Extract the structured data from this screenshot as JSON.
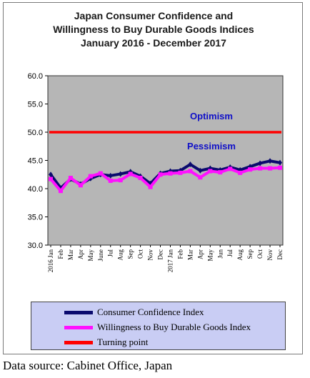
{
  "chart_data": {
    "type": "line",
    "title": [
      "Japan Consumer Confidence and",
      "Willingness to Buy Durable Goods Indices",
      "January 2016 - December   2017"
    ],
    "xlabel": "",
    "ylabel": "",
    "ylim": [
      30.0,
      60.0
    ],
    "yticks": [
      "60.0",
      "55.0",
      "50.0",
      "45.0",
      "40.0",
      "35.0",
      "30.0"
    ],
    "grid": false,
    "legend_position": "bottom",
    "categories": [
      "2016 Jan",
      "Feb",
      "Mar",
      "Apr",
      "May",
      "June",
      "Jul",
      "Aug",
      "Sep",
      "Oct",
      "Nov",
      "Dec",
      "2017 Jan",
      "Feb",
      "Mar",
      "Apr",
      "May",
      "Jun",
      "Jul",
      "Aug",
      "Sep",
      "Oct",
      "Nov",
      "Dec"
    ],
    "series": [
      {
        "name": "Consumer Confidence Index",
        "color": "#0a0a6e",
        "values": [
          42.5,
          40.1,
          41.7,
          40.8,
          41.8,
          42.5,
          42.3,
          42.6,
          43.0,
          42.2,
          40.9,
          42.7,
          43.1,
          43.2,
          44.3,
          43.2,
          43.6,
          43.3,
          43.8,
          43.3,
          43.9,
          44.5,
          44.9,
          44.6
        ]
      },
      {
        "name": "Willingness to Buy Durable Goods Index",
        "color": "#ff10ff",
        "values": [
          41.7,
          39.6,
          41.9,
          40.6,
          42.2,
          42.7,
          41.4,
          41.5,
          42.6,
          41.9,
          40.3,
          42.5,
          42.7,
          42.8,
          43.1,
          42.0,
          43.1,
          42.9,
          43.5,
          42.8,
          43.4,
          43.6,
          43.6,
          43.7
        ]
      },
      {
        "name": "Turning point",
        "color": "#ff0000",
        "values": [
          50,
          50,
          50,
          50,
          50,
          50,
          50,
          50,
          50,
          50,
          50,
          50,
          50,
          50,
          50,
          50,
          50,
          50,
          50,
          50,
          50,
          50,
          50,
          50
        ]
      }
    ],
    "annotations": [
      {
        "text": "Optimism",
        "y": 52.9
      },
      {
        "text": "Pessimism",
        "y": 47.6
      }
    ],
    "plot_background": "#b6b6b6"
  },
  "source": "Data source: Cabinet Office, Japan"
}
